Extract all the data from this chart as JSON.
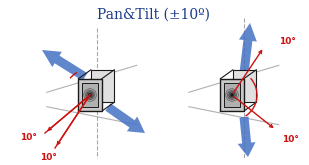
{
  "title": "Pan&Tilt (±10º)",
  "title_color": "#1a3a8a",
  "title_fontsize": 10,
  "bg_color": "#ffffff",
  "blue_color": "#4472c4",
  "blue_dark": "#2a4a90",
  "red_color": "#cc1111",
  "gray_color": "#909090",
  "dark_color": "#1a1a1a",
  "panel_face": "#c8c8c8",
  "panel_inner": "#b0b0b0"
}
